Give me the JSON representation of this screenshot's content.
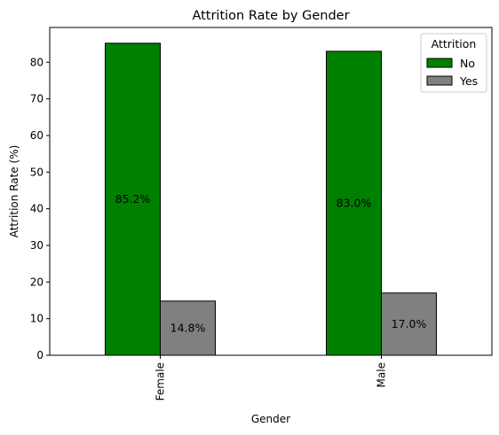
{
  "chart_data": {
    "type": "bar",
    "title": "Attrition Rate by Gender",
    "xlabel": "Gender",
    "ylabel": "Attrition Rate (%)",
    "categories": [
      "Female",
      "Male"
    ],
    "series": [
      {
        "name": "No",
        "values": [
          85.2,
          83.0
        ],
        "color": "#008000",
        "labels": [
          "85.2%",
          "83.0%"
        ]
      },
      {
        "name": "Yes",
        "values": [
          14.8,
          17.0
        ],
        "color": "#808080",
        "labels": [
          "14.8%",
          "17.0%"
        ]
      }
    ],
    "ylim": [
      0,
      89.5
    ],
    "yticks": [
      0,
      10,
      20,
      30,
      40,
      50,
      60,
      70,
      80
    ],
    "legend": {
      "title": "Attrition",
      "placement": "top-right"
    },
    "grid": false
  }
}
